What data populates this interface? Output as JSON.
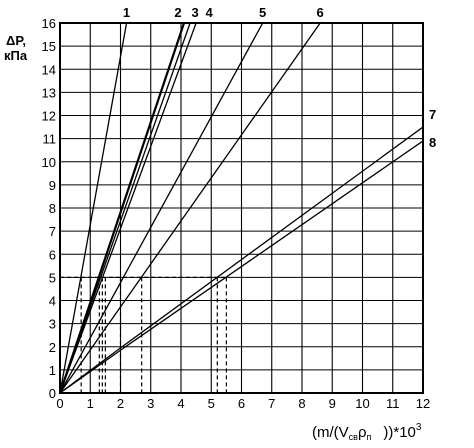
{
  "chart_data": {
    "type": "line",
    "ylabel_line1": "ΔP,",
    "ylabel_line2": "кПа",
    "xlabel_main": "(m/(V",
    "xlabel_sub1": "св",
    "xlabel_mid": "ρ",
    "xlabel_sub2": "п",
    "xlabel_tail": "))*10",
    "xlabel_exp": "3",
    "xlim": [
      0,
      12
    ],
    "ylim": [
      0,
      16
    ],
    "x_ticks": [
      "0",
      "1",
      "2",
      "3",
      "4",
      "5",
      "6",
      "7",
      "8",
      "9",
      "10",
      "11",
      "12"
    ],
    "y_ticks": [
      "0",
      "1",
      "2",
      "3",
      "4",
      "5",
      "6",
      "7",
      "8",
      "9",
      "10",
      "11",
      "12",
      "13",
      "14",
      "15",
      "16"
    ],
    "grid": true,
    "series": [
      {
        "name": "1",
        "points": [
          [
            0,
            0
          ],
          [
            2.2,
            16
          ]
        ]
      },
      {
        "name": "2",
        "points": [
          [
            0,
            0
          ],
          [
            4.1,
            16
          ]
        ]
      },
      {
        "name": "3",
        "points": [
          [
            0,
            0
          ],
          [
            4.3,
            16
          ]
        ]
      },
      {
        "name": "4",
        "points": [
          [
            0,
            0
          ],
          [
            4.5,
            16
          ]
        ]
      },
      {
        "name": "5",
        "points": [
          [
            0,
            0
          ],
          [
            6.7,
            16
          ]
        ]
      },
      {
        "name": "6",
        "points": [
          [
            0,
            0
          ],
          [
            8.6,
            16
          ]
        ]
      },
      {
        "name": "7",
        "points": [
          [
            0,
            0
          ],
          [
            2.0,
            1.95
          ],
          [
            12,
            11.5
          ]
        ]
      },
      {
        "name": "8",
        "points": [
          [
            0,
            0
          ],
          [
            2.0,
            1.85
          ],
          [
            12,
            10.9
          ]
        ]
      }
    ],
    "guide_y": 5,
    "guide_x": [
      0.7,
      1.3,
      1.4,
      1.5,
      2.0,
      2.7,
      5.2,
      5.5
    ]
  }
}
